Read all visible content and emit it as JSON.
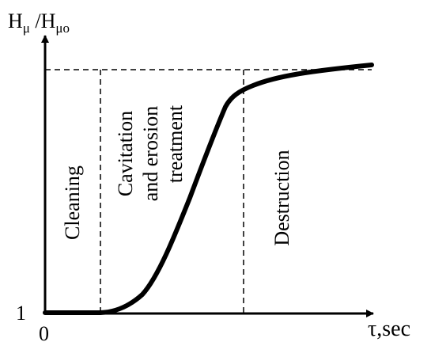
{
  "axes": {
    "y_label_main": "H",
    "y_label_sub1": "μ",
    "y_label_sep": " /H",
    "y_label_sub2": "μo",
    "x_label": "τ,sec",
    "origin_label": "0",
    "y_tick_label": "1"
  },
  "zones": {
    "cleaning": "Cleaning",
    "cavitation_line1": "Cavitation",
    "cavitation_line2": "and erosion",
    "cavitation_line3": "treatment",
    "destruction": "Destruction"
  },
  "style": {
    "ink": "#000000",
    "background": "#ffffff"
  }
}
